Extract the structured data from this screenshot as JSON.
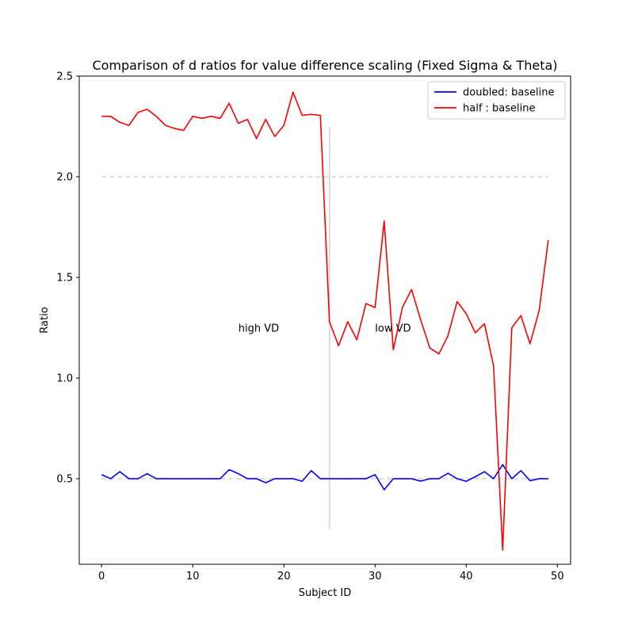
{
  "chart_data": {
    "type": "line",
    "title": "Comparison of d ratios for value difference scaling (Fixed Sigma & Theta)",
    "xlabel": "Subject ID",
    "ylabel": "Ratio",
    "xlim": [
      -2.45,
      51.45
    ],
    "ylim": [
      0.075,
      2.5
    ],
    "xticks": [
      0,
      10,
      20,
      30,
      40,
      50
    ],
    "yticks": [
      0.5,
      1.0,
      1.5,
      2.0,
      2.5
    ],
    "xtick_labels": [
      "0",
      "10",
      "20",
      "30",
      "40",
      "50"
    ],
    "ytick_labels": [
      "0.5",
      "1.0",
      "1.5",
      "2.0",
      "2.5"
    ],
    "grid": false,
    "legend_position": "top-right",
    "x": [
      0,
      1,
      2,
      3,
      4,
      5,
      6,
      7,
      8,
      9,
      10,
      11,
      12,
      13,
      14,
      15,
      16,
      17,
      18,
      19,
      20,
      21,
      22,
      23,
      24,
      25,
      26,
      27,
      28,
      29,
      30,
      31,
      32,
      33,
      34,
      35,
      36,
      37,
      38,
      39,
      40,
      41,
      42,
      43,
      44,
      45,
      46,
      47,
      48,
      49
    ],
    "series": [
      {
        "name": "doubled: baseline",
        "color": "#0000ff",
        "values": [
          0.52,
          0.5,
          0.535,
          0.5,
          0.5,
          0.525,
          0.5,
          0.5,
          0.5,
          0.5,
          0.5,
          0.5,
          0.5,
          0.5,
          0.545,
          0.525,
          0.5,
          0.5,
          0.48,
          0.5,
          0.5,
          0.5,
          0.487,
          0.54,
          0.5,
          0.5,
          0.5,
          0.5,
          0.5,
          0.5,
          0.52,
          0.445,
          0.5,
          0.5,
          0.5,
          0.488,
          0.5,
          0.5,
          0.527,
          0.5,
          0.487,
          0.51,
          0.535,
          0.5,
          0.57,
          0.5,
          0.54,
          0.49,
          0.5,
          0.5
        ]
      },
      {
        "name": "half : baseline",
        "color": "#ff0000",
        "values": [
          2.3,
          2.3,
          2.27,
          2.255,
          2.32,
          2.335,
          2.3,
          2.255,
          2.24,
          2.23,
          2.3,
          2.29,
          2.3,
          2.29,
          2.365,
          2.265,
          2.285,
          2.19,
          2.285,
          2.2,
          2.255,
          2.42,
          2.305,
          2.31,
          2.305,
          1.28,
          1.16,
          1.28,
          1.19,
          1.37,
          1.35,
          1.78,
          1.14,
          1.35,
          1.44,
          1.29,
          1.15,
          1.12,
          1.21,
          1.38,
          1.32,
          1.225,
          1.27,
          1.06,
          0.145,
          1.25,
          1.31,
          1.17,
          1.335,
          1.685
        ]
      }
    ],
    "reference_lines": [
      {
        "type": "horizontal",
        "y": 2.0,
        "x_start": 0,
        "x_end": 49,
        "style": "dashed",
        "color": "#d3d3d3"
      },
      {
        "type": "horizontal",
        "y": 0.5,
        "x_start": 0,
        "x_end": 49,
        "style": "dashed",
        "color": "#d3d3d3"
      },
      {
        "type": "vertical",
        "x": 25,
        "y_start": 0.25,
        "y_end": 2.25,
        "style": "solid",
        "color": "#d3d3d3"
      }
    ],
    "annotations": [
      {
        "text": "high VD",
        "x": 15,
        "y": 1.25
      },
      {
        "text": "low VD",
        "x": 30,
        "y": 1.25
      }
    ]
  }
}
